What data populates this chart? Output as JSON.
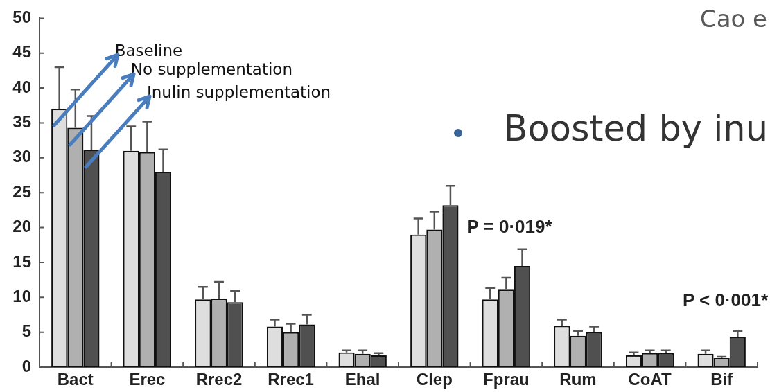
{
  "chart_data": {
    "type": "bar",
    "categories": [
      "Bact",
      "Erec",
      "Rrec2",
      "Rrec1",
      "Ehal",
      "Clep",
      "Fprau",
      "Rum",
      "CoAT",
      "Bif"
    ],
    "series": [
      {
        "name": "Baseline",
        "color": "#dedede",
        "values": [
          37,
          31,
          9.7,
          5.8,
          2.1,
          19.0,
          9.7,
          5.9,
          1.7,
          1.9
        ],
        "errors": [
          [
            37,
            43
          ],
          [
            31,
            34.5
          ],
          [
            9.7,
            11.5
          ],
          [
            5.8,
            6.8
          ],
          [
            2.1,
            2.4
          ],
          [
            19.0,
            21.3
          ],
          [
            9.7,
            11.3
          ],
          [
            5.9,
            6.8
          ],
          [
            1.7,
            2.1
          ],
          [
            1.9,
            2.4
          ]
        ]
      },
      {
        "name": "No supplementation",
        "color": "#b0b0b0",
        "values": [
          34.3,
          30.8,
          9.8,
          5.0,
          1.9,
          19.7,
          11.1,
          4.5,
          2.0,
          1.3
        ],
        "errors": [
          [
            34.3,
            39.8
          ],
          [
            30.8,
            35.2
          ],
          [
            9.8,
            12.2
          ],
          [
            5.0,
            6.2
          ],
          [
            1.9,
            2.4
          ],
          [
            19.7,
            22.3
          ],
          [
            11.1,
            12.8
          ],
          [
            4.5,
            5.2
          ],
          [
            2.0,
            2.4
          ],
          [
            1.3,
            1.5
          ]
        ]
      },
      {
        "name": "Inulin supplementation",
        "color": "#505050",
        "values": [
          31.1,
          28,
          9.3,
          6.1,
          1.7,
          23.2,
          14.5,
          5.0,
          2.0,
          4.3
        ],
        "errors": [
          [
            31.1,
            36
          ],
          [
            28,
            31.2
          ],
          [
            9.3,
            10.9
          ],
          [
            6.1,
            7.5
          ],
          [
            1.7,
            2.0
          ],
          [
            23.2,
            26
          ],
          [
            14.5,
            16.9
          ],
          [
            5.0,
            5.8
          ],
          [
            2.0,
            2.4
          ],
          [
            4.3,
            5.2
          ]
        ]
      }
    ],
    "ylim": [
      0,
      50
    ],
    "yticks": [
      0,
      5,
      10,
      15,
      20,
      25,
      30,
      35,
      40,
      45,
      50
    ],
    "annotations": [
      "Cao e",
      "Boosted by inu",
      {
        "text": "P = 0·019*",
        "x": "Clep",
        "y": 20
      },
      "P < 0·001*"
    ]
  }
}
